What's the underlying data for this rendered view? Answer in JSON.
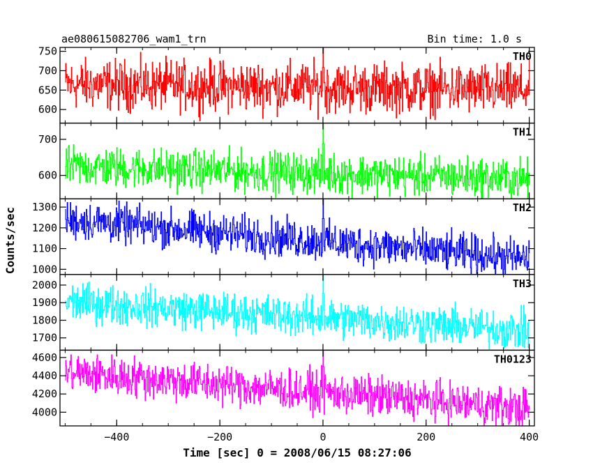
{
  "header": {
    "title": "ae080615082706_wam1_trn",
    "bin_time": "Bin time: 1.0 s"
  },
  "chart_data": {
    "type": "line",
    "xlabel": "Time [sec] 0 = 2008/06/15 08:27:06",
    "ylabel": "Counts/sec",
    "xlim": [
      -510,
      410
    ],
    "xticks": [
      -400,
      -200,
      0,
      200,
      400
    ],
    "xtick_labels": [
      "−400",
      "−200",
      "0",
      "200",
      "400"
    ],
    "x_start": -500,
    "x_end": 400,
    "x_step": 1,
    "panels": [
      {
        "name": "TH0",
        "color": "#ff0000",
        "ylim": [
          565,
          760
        ],
        "yticks": [
          600,
          650,
          700,
          750
        ],
        "trend_start": 665,
        "trend_end": 650,
        "noise": 55,
        "spike": 760,
        "min": 565,
        "max": 760
      },
      {
        "name": "TH1",
        "color": "#00ff00",
        "ylim": [
          535,
          745
        ],
        "yticks": [
          600,
          700
        ],
        "trend_start": 625,
        "trend_end": 590,
        "noise": 48,
        "spike": 770,
        "min": 535,
        "max": 745
      },
      {
        "name": "TH2",
        "color": "#0000ff",
        "ylim": [
          975,
          1340
        ],
        "yticks": [
          1000,
          1100,
          1200,
          1300
        ],
        "trend_start": 1240,
        "trend_end": 1050,
        "noise": 80,
        "spike": 1355,
        "min": 975,
        "max": 1340
      },
      {
        "name": "TH3",
        "color": "#00ffff",
        "ylim": [
          1630,
          2060
        ],
        "yticks": [
          1700,
          1800,
          1900,
          2000
        ],
        "trend_start": 1905,
        "trend_end": 1740,
        "noise": 95,
        "spike": 2090,
        "min": 1630,
        "max": 2060
      },
      {
        "name": "TH0123",
        "color": "#ff00ff",
        "ylim": [
          3850,
          4680
        ],
        "yticks": [
          4000,
          4200,
          4400,
          4600
        ],
        "trend_start": 4440,
        "trend_end": 4040,
        "noise": 190,
        "spike": 4780,
        "min": 3850,
        "max": 4680
      }
    ]
  }
}
